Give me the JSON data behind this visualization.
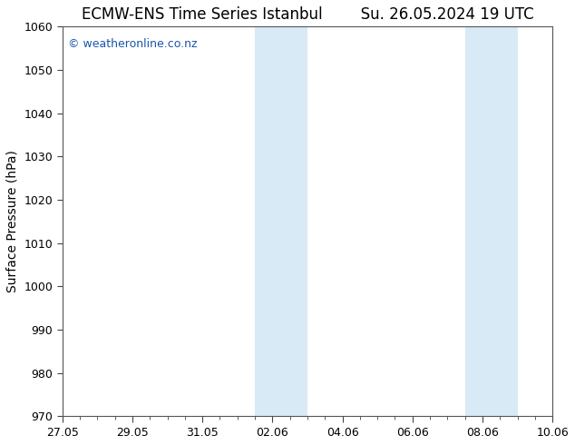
{
  "title_left": "ECMW-ENS Time Series Istanbul",
  "title_right": "Su. 26.05.2024 19 UTC",
  "ylabel": "Surface Pressure (hPa)",
  "ylim": [
    970,
    1060
  ],
  "yticks": [
    970,
    980,
    990,
    1000,
    1010,
    1020,
    1030,
    1040,
    1050,
    1060
  ],
  "xtick_labels": [
    "27.05",
    "29.05",
    "31.05",
    "02.06",
    "04.06",
    "06.06",
    "08.06",
    "10.06"
  ],
  "xtick_positions": [
    0,
    2,
    4,
    6,
    8,
    10,
    12,
    14
  ],
  "x_start": 0,
  "x_end": 14,
  "background_color": "#ffffff",
  "plot_bg_color": "#ffffff",
  "shaded_bands": [
    {
      "x_start": 5.5,
      "x_end": 6.0
    },
    {
      "x_start": 6.0,
      "x_end": 7.0
    },
    {
      "x_start": 11.5,
      "x_end": 12.0
    },
    {
      "x_start": 12.0,
      "x_end": 13.0
    }
  ],
  "shaded_color": "#d8eaf5",
  "watermark_text": "© weatheronline.co.nz",
  "watermark_color": "#1a55aa",
  "title_fontsize": 12,
  "tick_fontsize": 9,
  "ylabel_fontsize": 10
}
